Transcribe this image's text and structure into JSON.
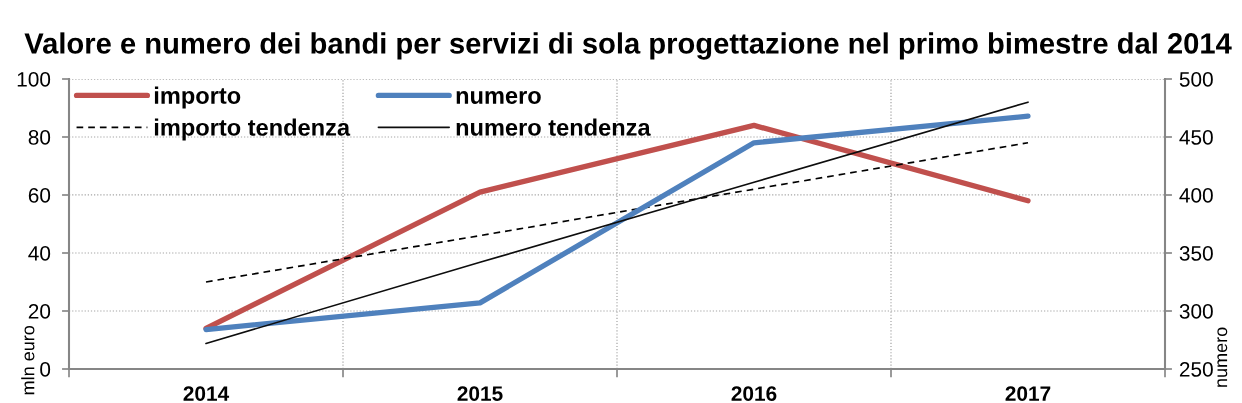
{
  "chart_data": {
    "type": "line",
    "title": "Valore e numero dei bandi per servizi di sola progettazione nel primo bimestre dal 2014",
    "ylabel": "mln euro",
    "y2label": "numero",
    "categories": [
      "2014",
      "2015",
      "2016",
      "2017"
    ],
    "series": [
      {
        "name": "importo",
        "color": "#c0504d",
        "values": [
          14,
          61,
          84,
          58
        ]
      },
      {
        "name": "numero",
        "color": "#4f81bd",
        "values": [
          284,
          307,
          445,
          468
        ],
        "axis": "y2"
      },
      {
        "name": "importo tendenza",
        "color": "#000000",
        "values": [
          30,
          46,
          62,
          78
        ],
        "line_style": "dashed"
      },
      {
        "name": "numero tendenza",
        "color": "#0d0d0d",
        "values": [
          272,
          342,
          411,
          480
        ],
        "axis": "y2",
        "line_style": "solid"
      }
    ],
    "ylim": [
      0,
      100
    ],
    "yticks": [
      0,
      20,
      40,
      60,
      80,
      100
    ],
    "y2lim": [
      250,
      500
    ],
    "y2ticks": [
      250,
      300,
      350,
      400,
      450,
      500
    ],
    "grid": true,
    "legend": "top left"
  }
}
